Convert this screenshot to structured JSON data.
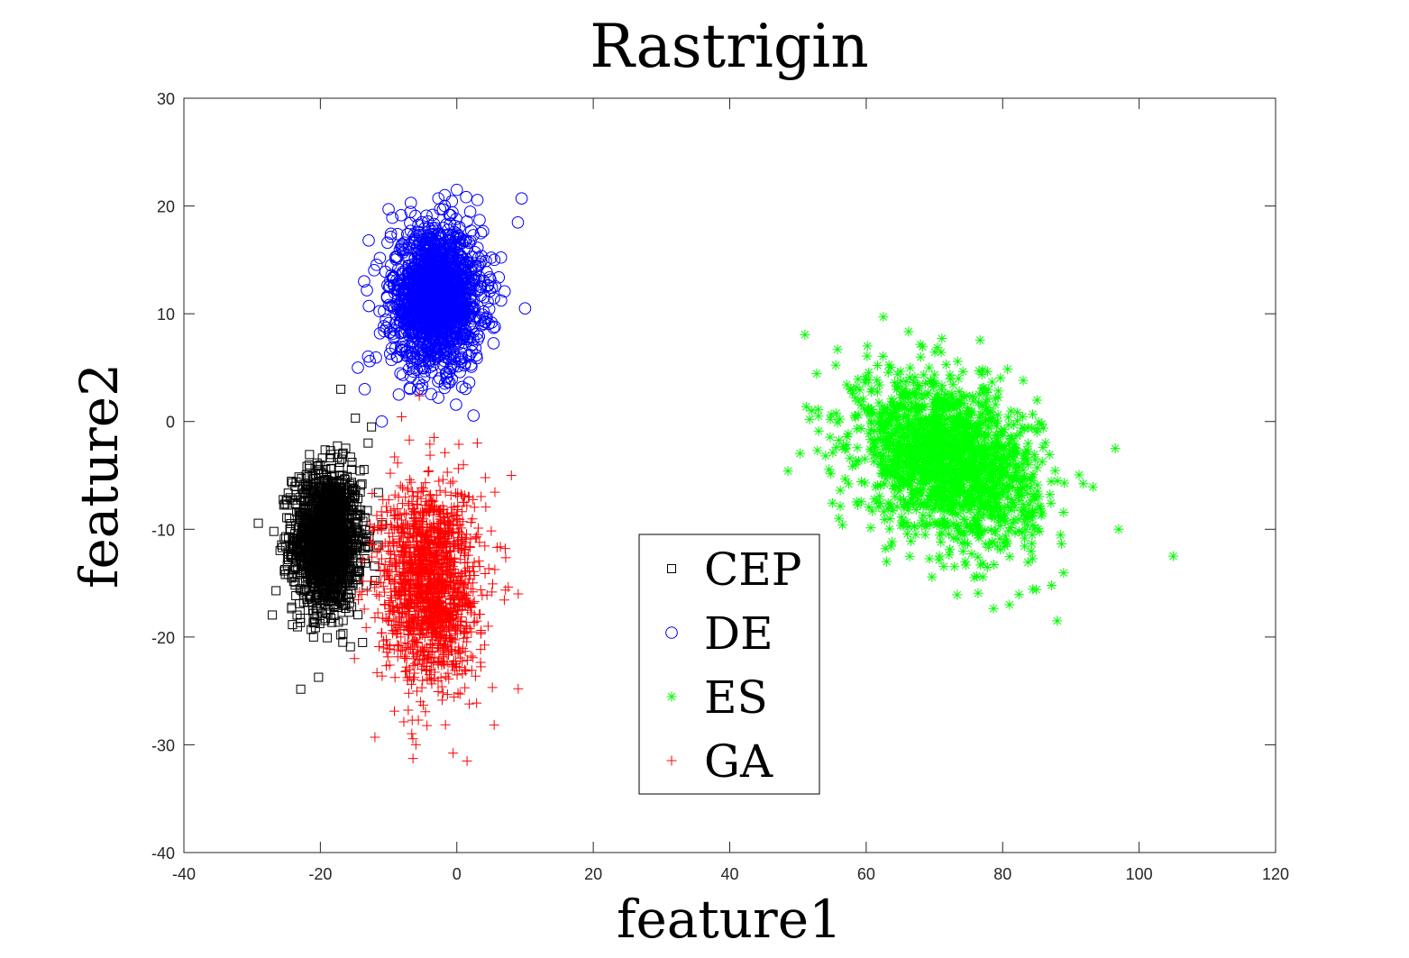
{
  "chart_data": {
    "type": "scatter",
    "title": "Rastrigin",
    "xlabel": "feature1",
    "ylabel": "feature2",
    "xlim": [
      -40,
      120
    ],
    "ylim": [
      -40,
      30
    ],
    "xticks": [
      -40,
      -20,
      0,
      20,
      40,
      60,
      80,
      100,
      120
    ],
    "yticks": [
      -40,
      -30,
      -20,
      -10,
      0,
      10,
      20,
      30
    ],
    "grid": false,
    "legend_position": "center-bottom",
    "series": [
      {
        "name": "CEP",
        "marker": "square",
        "color": "#000000",
        "cluster": {
          "x_mean": -19,
          "y_mean": -11,
          "x_std": 2.5,
          "y_std": 3.3,
          "count": 1500
        },
        "outliers": [
          [
            -17,
            3
          ],
          [
            -12.5,
            -0.5
          ],
          [
            -26.5,
            -15.7
          ],
          [
            -21,
            -20
          ],
          [
            -13,
            -2
          ]
        ]
      },
      {
        "name": "DE",
        "marker": "circle",
        "color": "#0000ff",
        "cluster": {
          "x_mean": -3,
          "y_mean": 11.5,
          "x_std": 3.3,
          "y_std": 3.2,
          "count": 1600
        },
        "outliers": [
          [
            9.5,
            20.7
          ],
          [
            10,
            10.5
          ],
          [
            0,
            21.5
          ],
          [
            -14.5,
            5
          ],
          [
            -13.5,
            3
          ],
          [
            -11,
            0
          ],
          [
            -10,
            19.7
          ],
          [
            -8.5,
            2.5
          ],
          [
            5.5,
            15
          ],
          [
            -1.5,
            4
          ]
        ]
      },
      {
        "name": "ES",
        "marker": "asterisk",
        "color": "#00ff00",
        "cluster": {
          "x_mean": 72,
          "y_mean": -3.5,
          "x_std": 6.5,
          "y_std": 3.6,
          "count": 1800
        },
        "outliers": [
          [
            105,
            -12.5
          ],
          [
            97,
            -10
          ],
          [
            96.5,
            -2.5
          ],
          [
            62.5,
            9.7
          ],
          [
            53,
            0.5
          ],
          [
            88,
            -18.5
          ],
          [
            81,
            -17
          ],
          [
            63,
            -13
          ]
        ]
      },
      {
        "name": "GA",
        "marker": "plus",
        "color": "#ff0000",
        "cluster": {
          "x_mean": -4,
          "y_mean": -15,
          "x_std": 3.5,
          "y_std": 4.6,
          "count": 1600
        },
        "outliers": [
          [
            1.5,
            -31.5
          ],
          [
            -12,
            -29.3
          ],
          [
            9,
            -24.8
          ],
          [
            9,
            -16
          ],
          [
            -15,
            -22
          ],
          [
            -6,
            -30
          ],
          [
            3,
            -2
          ],
          [
            8,
            -5
          ]
        ]
      }
    ]
  }
}
